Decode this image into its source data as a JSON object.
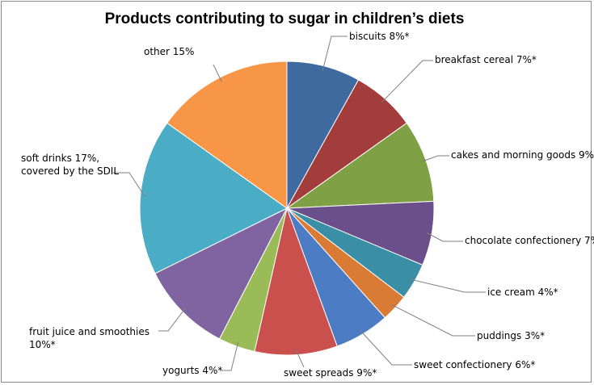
{
  "chart_data": {
    "type": "pie",
    "title": "Products contributing to sugar in children’s diets",
    "start": "12 o'clock",
    "direction": "clockwise",
    "slices": [
      {
        "label": "biscuits 8%*",
        "value": 8,
        "color": "#3e6aa0"
      },
      {
        "label": "breakfast cereal 7%*",
        "value": 7,
        "color": "#a23d3b"
      },
      {
        "label": "cakes and morning goods 9%*",
        "value": 9,
        "color": "#7fa045"
      },
      {
        "label": "chocolate confectionery 7%*",
        "value": 7,
        "color": "#6b4f8a"
      },
      {
        "label": "ice cream 4%*",
        "value": 4,
        "color": "#3a8fa6"
      },
      {
        "label": "puddings 3%*",
        "value": 3,
        "color": "#d97b34"
      },
      {
        "label": "sweet confectionery 6%*",
        "value": 6,
        "color": "#4c7dc4"
      },
      {
        "label": "sweet spreads 9%*",
        "value": 9,
        "color": "#c9504d"
      },
      {
        "label": "yogurts 4%*",
        "value": 4,
        "color": "#9bbb59"
      },
      {
        "label": "fruit juice and smoothies\n10%*",
        "value": 10,
        "color": "#8064a2"
      },
      {
        "label": "soft drinks 17%,\ncovered by the SDIL",
        "value": 17,
        "color": "#4bacc6"
      },
      {
        "label": "other 15%",
        "value": 15,
        "color": "#f79646"
      }
    ]
  }
}
